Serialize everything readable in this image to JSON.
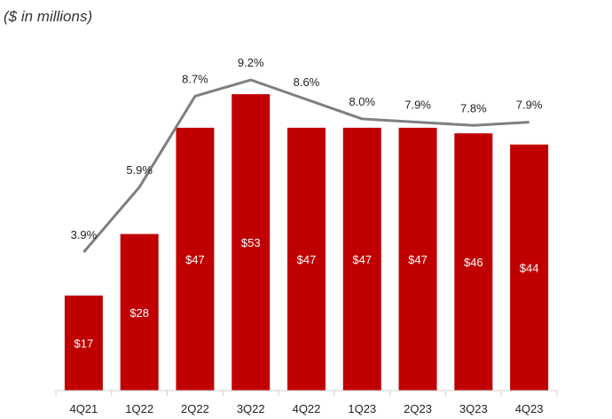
{
  "unit_label": "($ in millions)",
  "colors": {
    "bar": "#c00000",
    "line": "#7f7f7f",
    "bar_label": "#ffffff"
  },
  "chart_data": {
    "type": "bar",
    "categories": [
      "4Q21",
      "1Q22",
      "2Q22",
      "3Q22",
      "4Q22",
      "1Q23",
      "2Q23",
      "3Q23",
      "4Q23"
    ],
    "ylim": [
      0,
      60
    ],
    "series": [
      {
        "type": "bar",
        "values": [
          17,
          28,
          47,
          53,
          47,
          47,
          47,
          46,
          44
        ],
        "labels": [
          "$17",
          "$28",
          "$47",
          "$53",
          "$47",
          "$47",
          "$47",
          "$46",
          "$44"
        ]
      },
      {
        "type": "line",
        "axis": "secondary",
        "values": [
          3.9,
          5.9,
          8.7,
          9.2,
          8.6,
          8.0,
          7.9,
          7.8,
          7.9
        ],
        "labels": [
          "3.9%",
          "5.9%",
          "8.7%",
          "9.2%",
          "8.6%",
          "8.0%",
          "7.9%",
          "7.8%",
          "7.9%"
        ]
      }
    ],
    "secondary_ylim": [
      0,
      11.5
    ],
    "grid": false,
    "legend": "none"
  }
}
